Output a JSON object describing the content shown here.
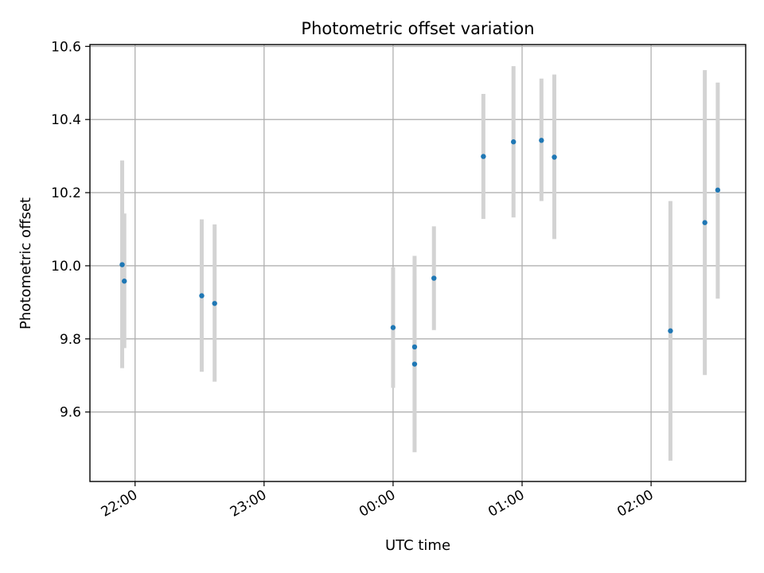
{
  "chart_data": {
    "type": "scatter",
    "title": "Photometric offset variation",
    "xlabel": "UTC time",
    "ylabel": "Photometric offset",
    "grid": true,
    "colors": {
      "point": "#1f77b4",
      "errorbar": "#d3d3d3",
      "grid": "#b0b0b0"
    },
    "x_axis": {
      "kind": "time",
      "range": [
        "21:39",
        "02:44"
      ],
      "ticks": [
        {
          "value": "22:00",
          "label": "22:00"
        },
        {
          "value": "23:00",
          "label": "23:00"
        },
        {
          "value": "00:00",
          "label": "00:00"
        },
        {
          "value": "01:00",
          "label": "01:00"
        },
        {
          "value": "02:00",
          "label": "02:00"
        }
      ]
    },
    "y_axis": {
      "range": [
        9.41,
        10.605
      ],
      "ticks": [
        {
          "value": 9.6,
          "label": "9.6"
        },
        {
          "value": 9.8,
          "label": "9.8"
        },
        {
          "value": 10.0,
          "label": "10.0"
        },
        {
          "value": 10.2,
          "label": "10.2"
        },
        {
          "value": 10.4,
          "label": "10.4"
        },
        {
          "value": 10.6,
          "label": "10.6"
        }
      ]
    },
    "points": [
      {
        "x": "21:54",
        "y": 10.003,
        "lo": 9.72,
        "hi": 10.288
      },
      {
        "x": "21:55",
        "y": 9.958,
        "lo": 9.775,
        "hi": 10.143
      },
      {
        "x": "22:31",
        "y": 9.918,
        "lo": 9.71,
        "hi": 10.127
      },
      {
        "x": "22:37",
        "y": 9.897,
        "lo": 9.683,
        "hi": 10.113
      },
      {
        "x": "00:00",
        "y": 9.831,
        "lo": 9.666,
        "hi": 9.996
      },
      {
        "x": "00:10",
        "y": 9.778,
        "lo": 9.53,
        "hi": 10.027
      },
      {
        "x": "00:10",
        "y": 9.731,
        "lo": 9.49,
        "hi": 9.972
      },
      {
        "x": "00:19",
        "y": 9.966,
        "lo": 9.824,
        "hi": 10.108
      },
      {
        "x": "00:42",
        "y": 10.299,
        "lo": 10.128,
        "hi": 10.47
      },
      {
        "x": "00:56",
        "y": 10.339,
        "lo": 10.132,
        "hi": 10.546
      },
      {
        "x": "01:09",
        "y": 10.343,
        "lo": 10.177,
        "hi": 10.512
      },
      {
        "x": "01:15",
        "y": 10.297,
        "lo": 10.073,
        "hi": 10.523
      },
      {
        "x": "02:09",
        "y": 9.822,
        "lo": 9.467,
        "hi": 10.177
      },
      {
        "x": "02:25",
        "y": 10.118,
        "lo": 9.701,
        "hi": 10.535
      },
      {
        "x": "02:31",
        "y": 10.207,
        "lo": 9.91,
        "hi": 10.501
      }
    ]
  }
}
